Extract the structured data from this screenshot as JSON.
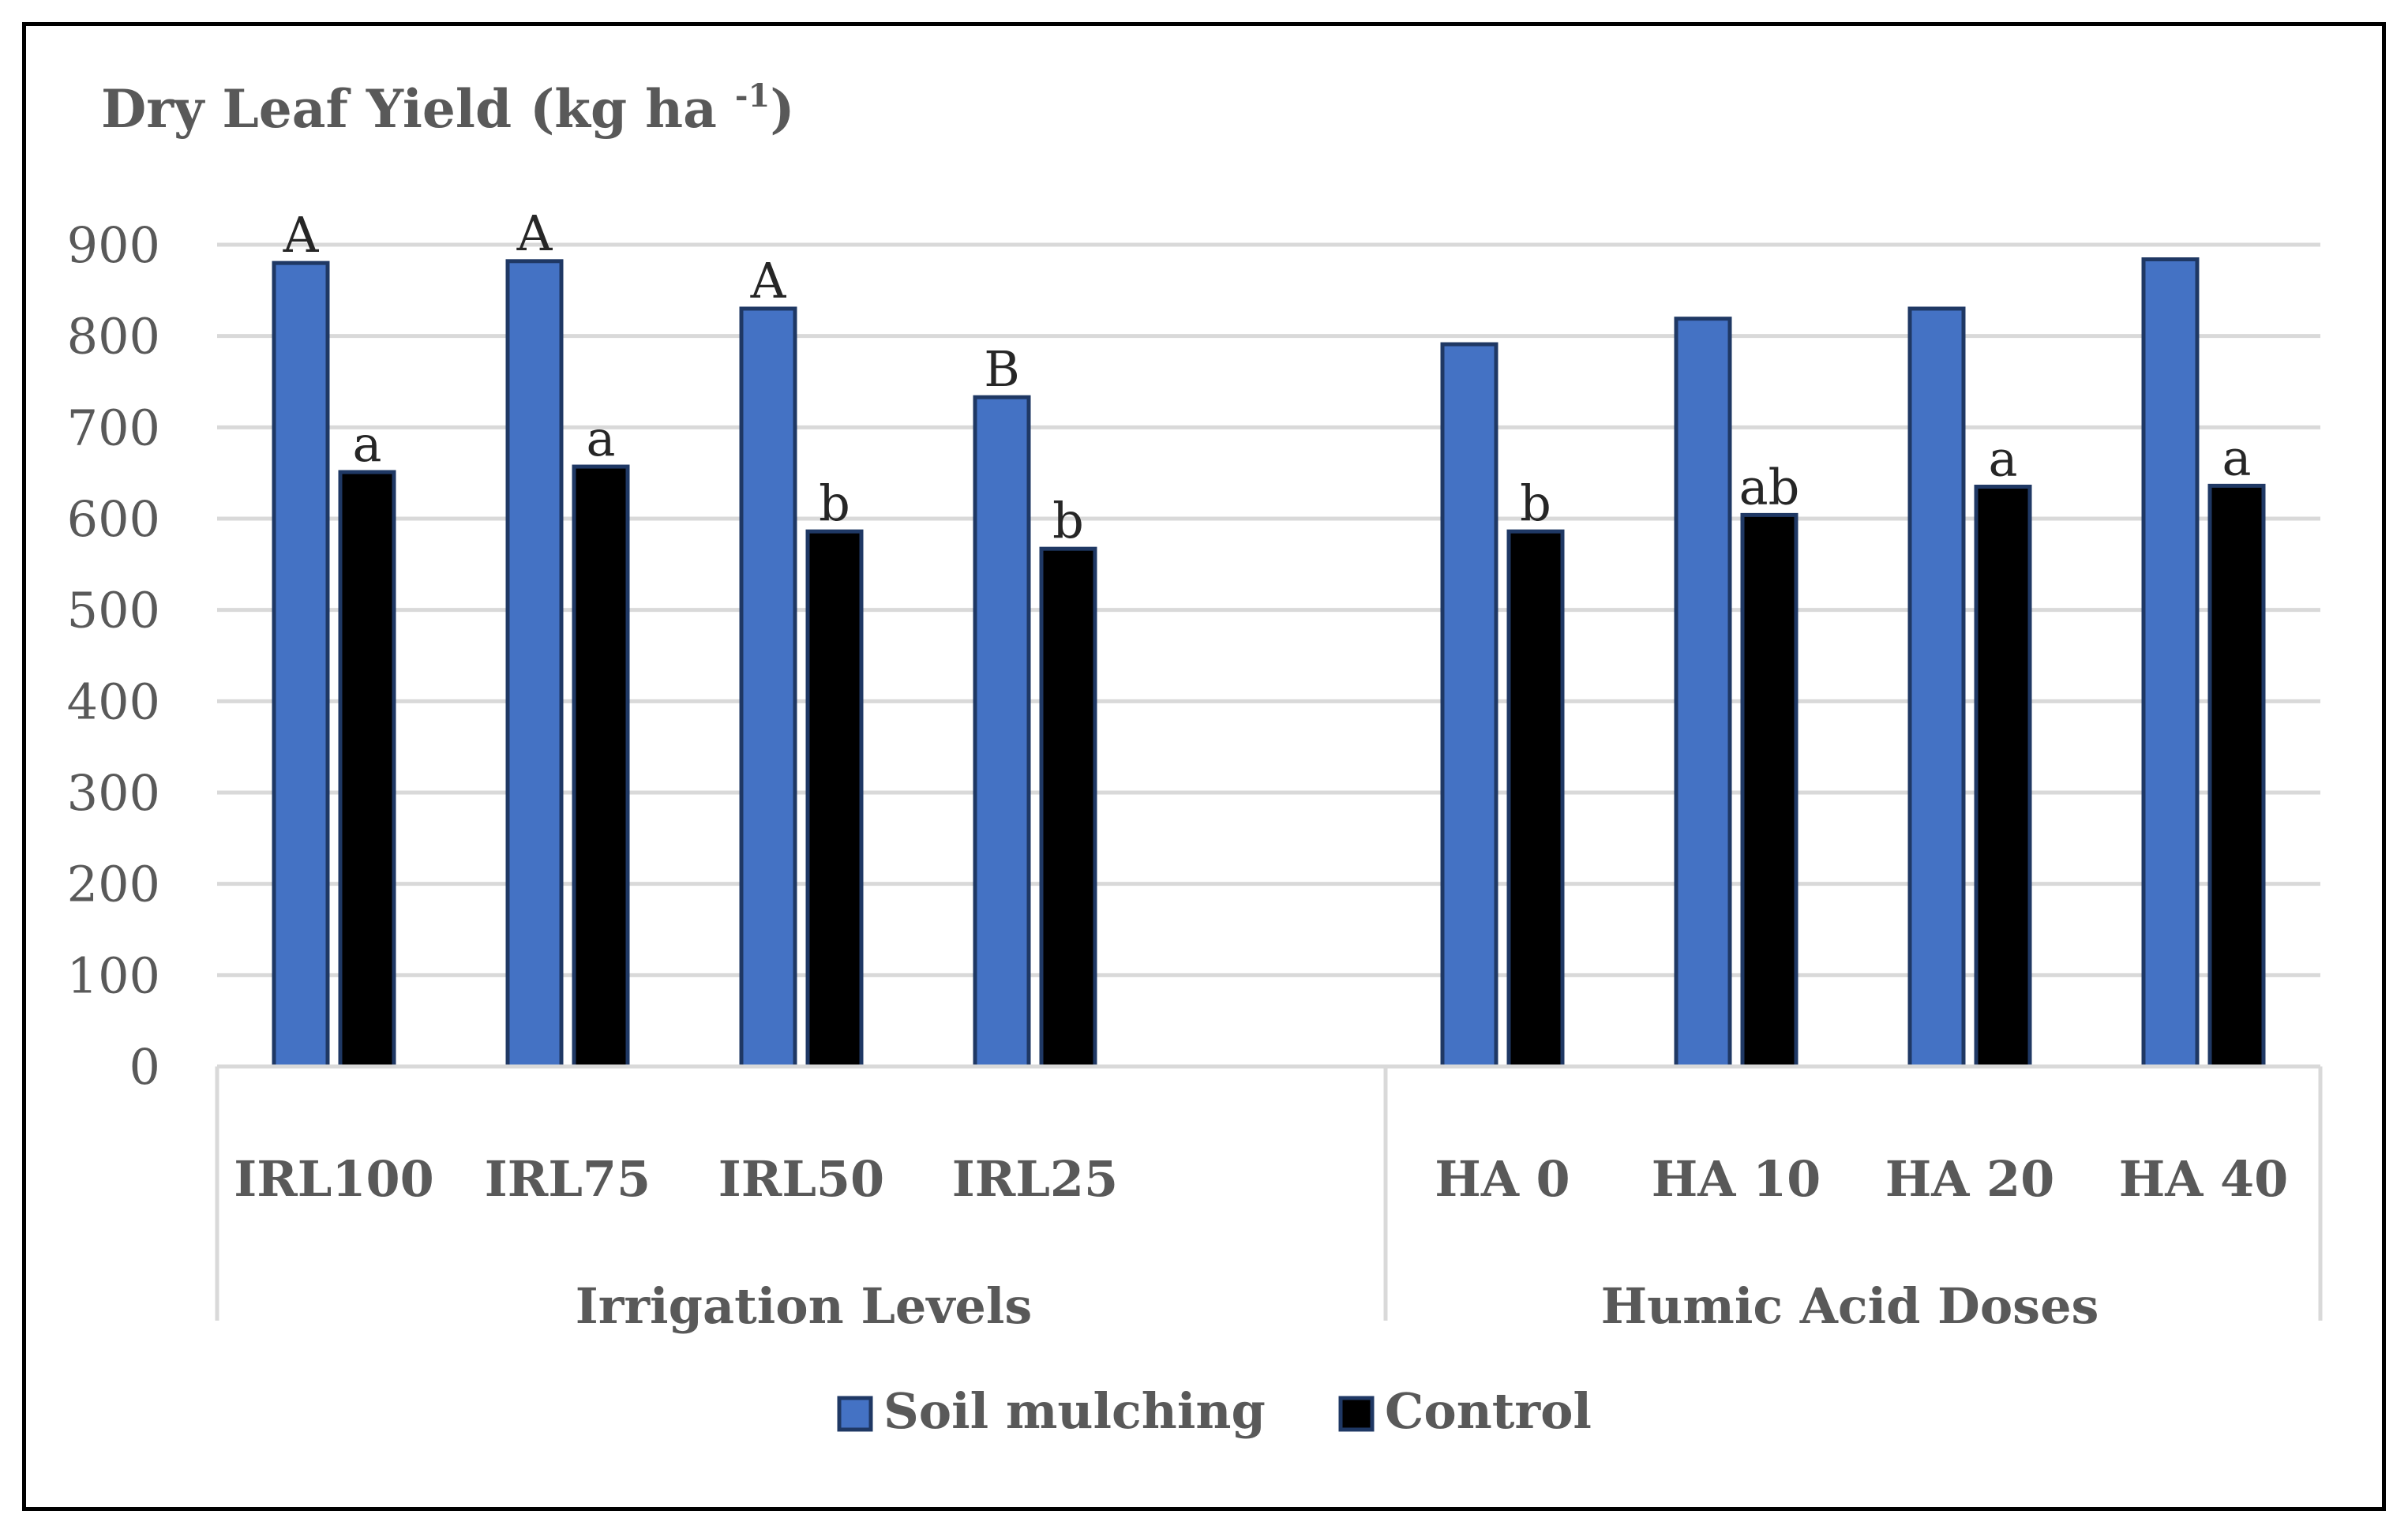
{
  "chart_data": {
    "type": "bar",
    "title": "Dry Leaf Yield (kg ha",
    "title_superscript": "-1",
    "title_close": ")",
    "ylim": [
      0,
      900
    ],
    "yticks": [
      0,
      100,
      200,
      300,
      400,
      500,
      600,
      700,
      800,
      900
    ],
    "grid": true,
    "groups": [
      {
        "name": "Irrigation Levels",
        "categories": [
          "IRL100",
          "IRL75",
          "IRL50",
          "IRL25"
        ],
        "series_values": {
          "Soil mulching": [
            880,
            882,
            830,
            733
          ],
          "Control": [
            651,
            657,
            586,
            567
          ]
        },
        "letters": {
          "Soil mulching": [
            "A",
            "A",
            "A",
            "B"
          ],
          "Control": [
            "a",
            "a",
            "b",
            "b"
          ]
        }
      },
      {
        "name": "Humic Acid Doses",
        "categories": [
          "HA 0",
          "HA 10",
          "HA 20",
          "HA 40"
        ],
        "series_values": {
          "Soil mulching": [
            791,
            819,
            830,
            884
          ],
          "Control": [
            586,
            604,
            635,
            636
          ]
        },
        "letters": {
          "Soil mulching": [
            "",
            "",
            "",
            ""
          ],
          "Control": [
            "b",
            "ab",
            "a",
            "a"
          ]
        }
      }
    ],
    "series": [
      {
        "name": "Soil mulching",
        "color": "#4472C4",
        "stroke": "#1F3864"
      },
      {
        "name": "Control",
        "color": "#000000",
        "stroke": "#1F3864"
      }
    ],
    "legend_position": "bottom-center"
  },
  "colors": {
    "grid": "#D9D9D9",
    "axis_text": "#595959",
    "title_text": "#595959",
    "letter_text": "#262626"
  }
}
